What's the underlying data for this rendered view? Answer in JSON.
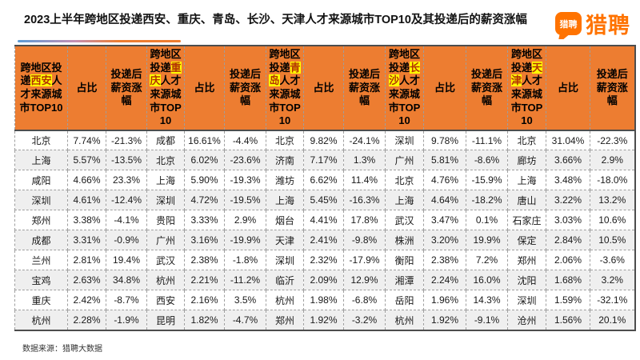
{
  "page": {
    "title": "2023上半年跨地区投递西安、重庆、青岛、长沙、天津人才来源城市TOP10及其投递后的薪资涨幅",
    "logo": {
      "bubble_text": "猎聘",
      "brand_text": "猎聘"
    },
    "source_note": "数据来源：猎聘大数据"
  },
  "colors": {
    "header_bg": "#ED7D31",
    "highlight_bg": "#FFFF00",
    "highlight_text": "#B43104",
    "stripe_bg": "#EFEFEF",
    "brand_orange": "#FF7300",
    "border_dark": "#4D4D4D",
    "border_dashed": "#9E9E9E",
    "title_gradient_start": "#5B9BD5",
    "title_gradient_mid": "#C490B4",
    "title_gradient_end": "#ED7D31"
  },
  "chart_data": {
    "type": "table",
    "title": "2023上半年跨地区投递西安、重庆、青岛、长沙、天津人才来源城市TOP10及其投递后的薪资涨幅",
    "source": "数据来源：猎聘大数据",
    "headers": {
      "group_prefix": "跨地区投递",
      "group_suffix": "人才来源城市TOP10",
      "share": "占比",
      "salary_change": "投递后薪资涨幅"
    },
    "columns": [
      "source_city",
      "share",
      "salary_change"
    ],
    "groups": [
      {
        "destination_city": "西安",
        "rows": [
          [
            "北京",
            "7.74%",
            "-21.3%"
          ],
          [
            "上海",
            "5.57%",
            "-13.5%"
          ],
          [
            "咸阳",
            "4.66%",
            "23.3%"
          ],
          [
            "深圳",
            "4.61%",
            "-12.4%"
          ],
          [
            "郑州",
            "3.38%",
            "-4.1%"
          ],
          [
            "成都",
            "3.31%",
            "-0.9%"
          ],
          [
            "兰州",
            "2.81%",
            "19.4%"
          ],
          [
            "宝鸡",
            "2.63%",
            "34.8%"
          ],
          [
            "重庆",
            "2.42%",
            "-8.7%"
          ],
          [
            "杭州",
            "2.28%",
            "-1.9%"
          ]
        ]
      },
      {
        "destination_city": "重庆",
        "rows": [
          [
            "成都",
            "16.61%",
            "-4.4%"
          ],
          [
            "北京",
            "6.02%",
            "-23.6%"
          ],
          [
            "上海",
            "5.90%",
            "-19.3%"
          ],
          [
            "深圳",
            "4.72%",
            "-19.5%"
          ],
          [
            "贵阳",
            "3.33%",
            "2.9%"
          ],
          [
            "广州",
            "3.16%",
            "-19.9%"
          ],
          [
            "武汉",
            "2.38%",
            "-1.8%"
          ],
          [
            "杭州",
            "2.21%",
            "-11.2%"
          ],
          [
            "西安",
            "2.16%",
            "3.5%"
          ],
          [
            "昆明",
            "1.82%",
            "-4.7%"
          ]
        ]
      },
      {
        "destination_city": "青岛",
        "rows": [
          [
            "北京",
            "9.82%",
            "-24.1%"
          ],
          [
            "济南",
            "7.17%",
            "1.3%"
          ],
          [
            "潍坊",
            "6.62%",
            "11.4%"
          ],
          [
            "上海",
            "5.45%",
            "-16.3%"
          ],
          [
            "烟台",
            "4.41%",
            "17.8%"
          ],
          [
            "天津",
            "2.41%",
            "-9.8%"
          ],
          [
            "深圳",
            "2.32%",
            "-17.9%"
          ],
          [
            "临沂",
            "2.09%",
            "12.9%"
          ],
          [
            "杭州",
            "1.98%",
            "-6.8%"
          ],
          [
            "郑州",
            "1.92%",
            "-3.2%"
          ]
        ]
      },
      {
        "destination_city": "长沙",
        "rows": [
          [
            "深圳",
            "9.78%",
            "-11.1%"
          ],
          [
            "广州",
            "5.81%",
            "-8.6%"
          ],
          [
            "北京",
            "4.76%",
            "-15.9%"
          ],
          [
            "上海",
            "4.64%",
            "-18.2%"
          ],
          [
            "武汉",
            "3.47%",
            "0.1%"
          ],
          [
            "株洲",
            "3.20%",
            "19.9%"
          ],
          [
            "衡阳",
            "2.38%",
            "7.2%"
          ],
          [
            "湘潭",
            "2.24%",
            "16.0%"
          ],
          [
            "岳阳",
            "1.96%",
            "14.3%"
          ],
          [
            "杭州",
            "1.92%",
            "-9.1%"
          ]
        ]
      },
      {
        "destination_city": "天津",
        "rows": [
          [
            "北京",
            "31.04%",
            "-22.3%"
          ],
          [
            "廊坊",
            "3.66%",
            "2.9%"
          ],
          [
            "上海",
            "3.48%",
            "-18.0%"
          ],
          [
            "唐山",
            "3.22%",
            "13.2%"
          ],
          [
            "石家庄",
            "3.03%",
            "10.6%"
          ],
          [
            "保定",
            "2.84%",
            "10.5%"
          ],
          [
            "郑州",
            "2.06%",
            "-3.6%"
          ],
          [
            "沈阳",
            "1.68%",
            "3.2%"
          ],
          [
            "深圳",
            "1.59%",
            "-32.1%"
          ],
          [
            "沧州",
            "1.56%",
            "20.1%"
          ]
        ]
      }
    ]
  }
}
